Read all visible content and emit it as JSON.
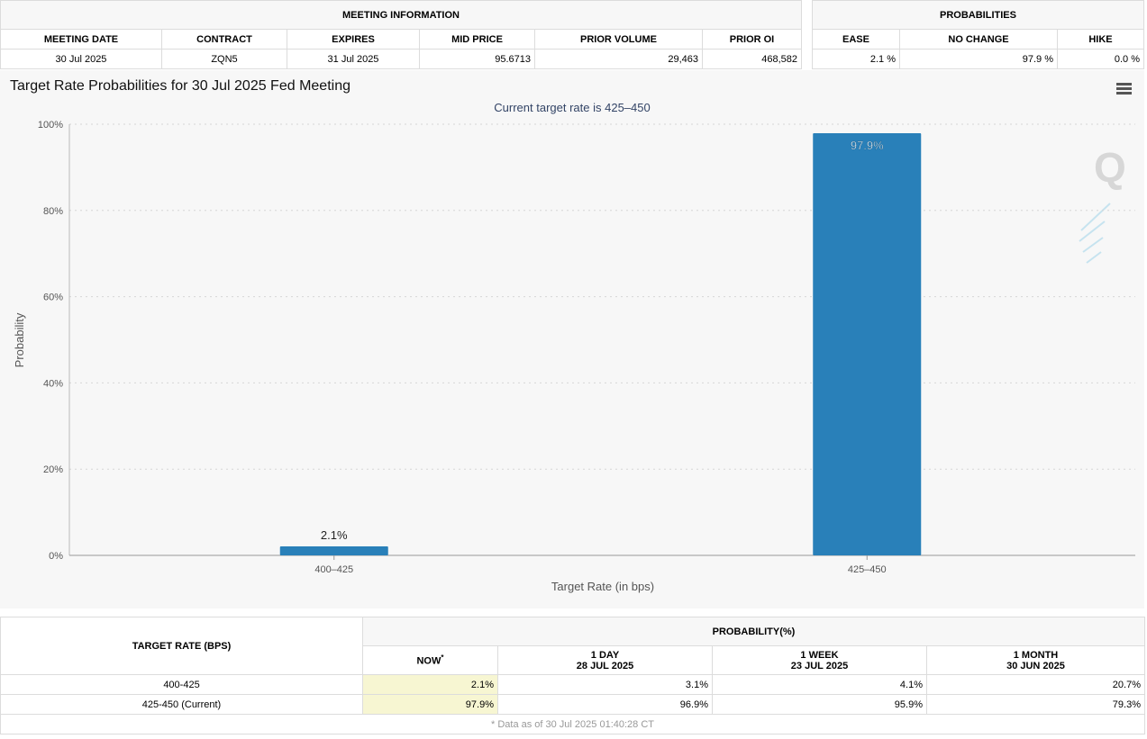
{
  "meeting_info": {
    "title": "MEETING INFORMATION",
    "headers": [
      "MEETING DATE",
      "CONTRACT",
      "EXPIRES",
      "MID PRICE",
      "PRIOR VOLUME",
      "PRIOR OI"
    ],
    "values": [
      "30 Jul 2025",
      "ZQN5",
      "31 Jul 2025",
      "95.6713",
      "29,463",
      "468,582"
    ]
  },
  "probabilities": {
    "title": "PROBABILITIES",
    "headers": [
      "EASE",
      "NO CHANGE",
      "HIKE"
    ],
    "values": [
      "2.1 %",
      "97.9 %",
      "0.0 %"
    ]
  },
  "chart_data": {
    "type": "bar",
    "title": "Target Rate Probabilities for 30 Jul 2025 Fed Meeting",
    "subtitle": "Current target rate is 425–450",
    "xlabel": "Target Rate (in bps)",
    "ylabel": "Probability",
    "categories": [
      "400–425",
      "425–450"
    ],
    "values": [
      2.1,
      97.9
    ],
    "data_labels": [
      "2.1%",
      "97.9%"
    ],
    "ylim": [
      0,
      100
    ],
    "yticks": [
      0,
      20,
      40,
      60,
      80,
      100
    ],
    "ytick_labels": [
      "0%",
      "20%",
      "40%",
      "60%",
      "80%",
      "100%"
    ],
    "bar_color": "#2980b9",
    "grid": true
  },
  "history": {
    "target_rate_header": "TARGET RATE (BPS)",
    "probability_header": "PROBABILITY(%)",
    "columns": [
      {
        "label": "NOW",
        "mark": "*",
        "date": ""
      },
      {
        "label": "1 DAY",
        "date": "28 JUL 2025"
      },
      {
        "label": "1 WEEK",
        "date": "23 JUL 2025"
      },
      {
        "label": "1 MONTH",
        "date": "30 JUN 2025"
      }
    ],
    "rows": [
      {
        "rate": "400-425",
        "values": [
          "2.1%",
          "3.1%",
          "4.1%",
          "20.7%"
        ]
      },
      {
        "rate": "425-450 (Current)",
        "values": [
          "97.9%",
          "96.9%",
          "95.9%",
          "79.3%"
        ]
      }
    ],
    "footnote": "* Data as of 30 Jul 2025 01:40:28 CT"
  },
  "colors": {
    "now_highlight": "#f7f6d2",
    "chart_bg": "#f7f7f7"
  },
  "icons": {
    "menu": "hamburger-menu-icon",
    "watermark": "quikstrike-logo"
  }
}
